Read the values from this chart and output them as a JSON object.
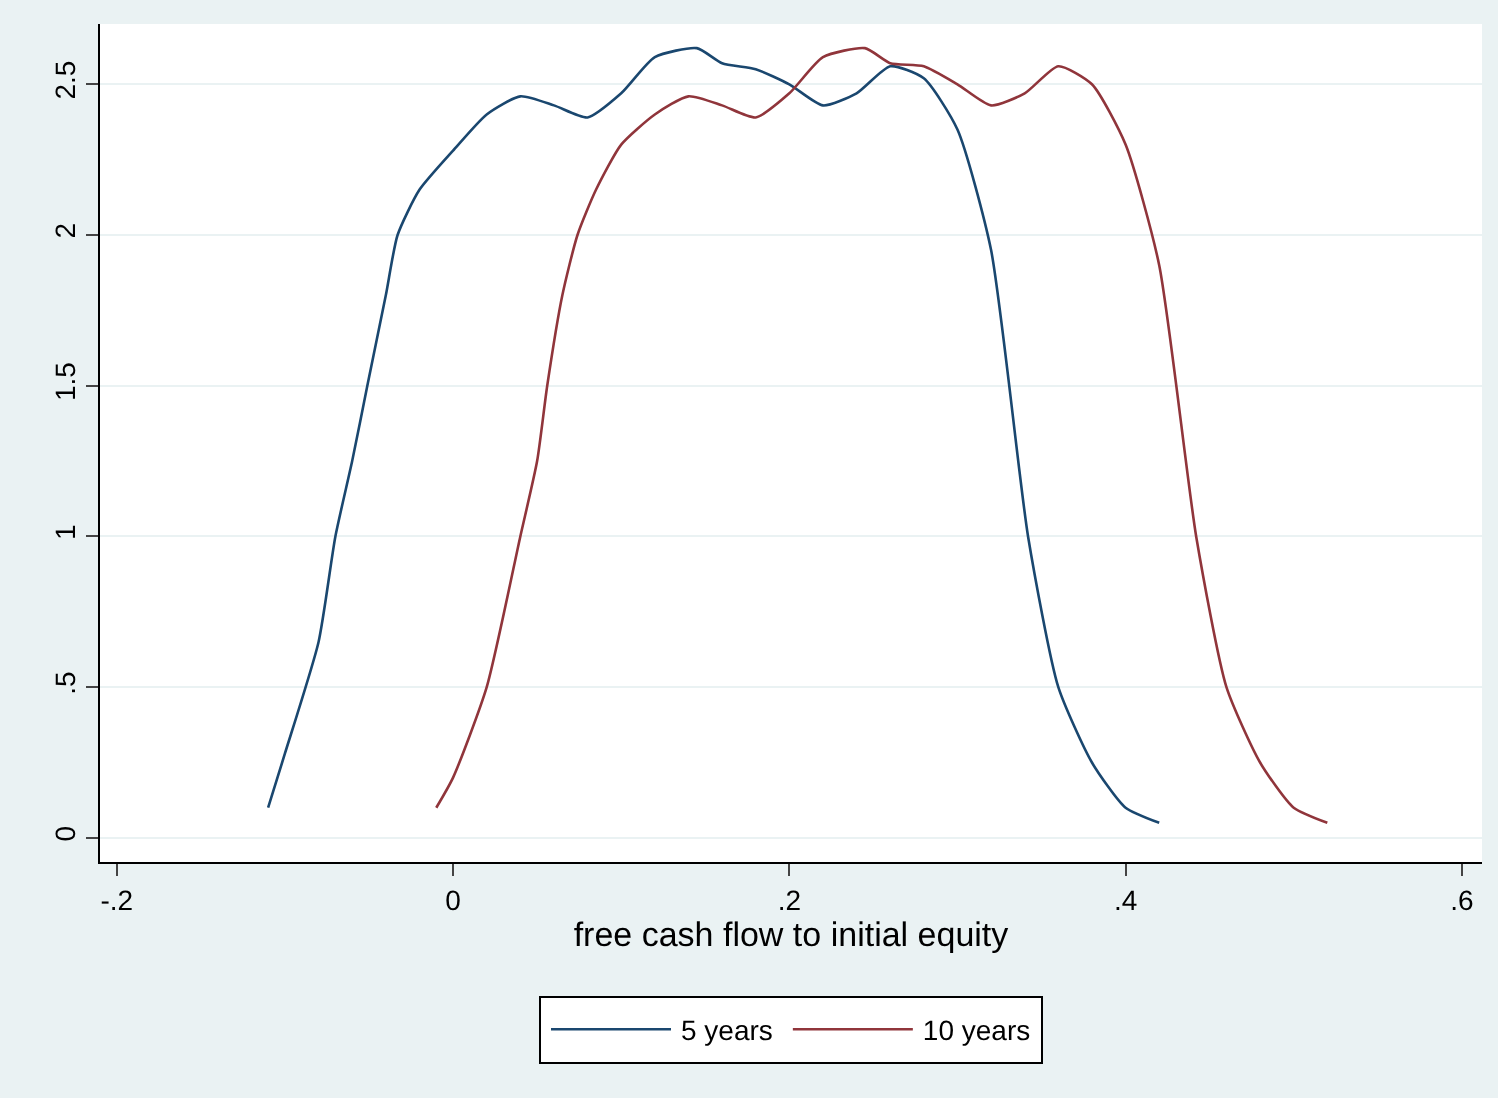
{
  "chart_data": {
    "type": "line",
    "xlabel": "free cash flow to initial equity",
    "xlim": [
      -0.21,
      0.612
    ],
    "ylim": [
      -0.08,
      2.7
    ],
    "xticks": [
      {
        "value": -0.2,
        "label": "-.2"
      },
      0,
      {
        "value": 0.2,
        "label": ".2"
      },
      {
        "value": 0.4,
        "label": ".4"
      },
      {
        "value": 0.6,
        "label": ".6"
      }
    ],
    "yticks": [
      0,
      {
        "value": 0.5,
        "label": ".5"
      },
      1,
      1.5,
      2,
      2.5
    ],
    "grid": "y",
    "legend": "bottom",
    "line_style": "solid",
    "marker": "none",
    "series": [
      {
        "name": "5 years",
        "color": "#1a476f",
        "x": [
          -0.11,
          -0.1,
          -0.08,
          -0.07,
          -0.06,
          -0.051,
          -0.04,
          -0.033,
          -0.02,
          0,
          0.02,
          0.04,
          0.06,
          0.08,
          0.1,
          0.12,
          0.145,
          0.16,
          0.18,
          0.2,
          0.22,
          0.24,
          0.26,
          0.28,
          0.3,
          0.32,
          0.342,
          0.36,
          0.38,
          0.4,
          0.42
        ],
        "values": [
          0.1,
          0.28,
          0.65,
          1,
          1.25,
          1.5,
          1.8,
          2,
          2.15,
          2.28,
          2.4,
          2.46,
          2.43,
          2.39,
          2.47,
          2.59,
          2.62,
          2.57,
          2.55,
          2.5,
          2.43,
          2.47,
          2.56,
          2.52,
          2.35,
          1.95,
          1,
          0.5,
          0.25,
          0.1,
          0.05
        ]
      },
      {
        "name": "10 years",
        "color": "#90353b",
        "x": [
          -0.01,
          0,
          0.02,
          0.04,
          0.05,
          0.056,
          0.065,
          0.074,
          0.085,
          0.1,
          0.12,
          0.14,
          0.16,
          0.18,
          0.2,
          0.22,
          0.245,
          0.26,
          0.28,
          0.3,
          0.32,
          0.34,
          0.36,
          0.38,
          0.4,
          0.42,
          0.442,
          0.46,
          0.48,
          0.5,
          0.52
        ],
        "values": [
          0.1,
          0.2,
          0.5,
          1,
          1.25,
          1.5,
          1.8,
          2,
          2.15,
          2.3,
          2.4,
          2.46,
          2.43,
          2.39,
          2.47,
          2.59,
          2.62,
          2.57,
          2.56,
          2.5,
          2.43,
          2.47,
          2.56,
          2.5,
          2.3,
          1.9,
          1,
          0.5,
          0.25,
          0.1,
          0.05
        ]
      }
    ]
  }
}
